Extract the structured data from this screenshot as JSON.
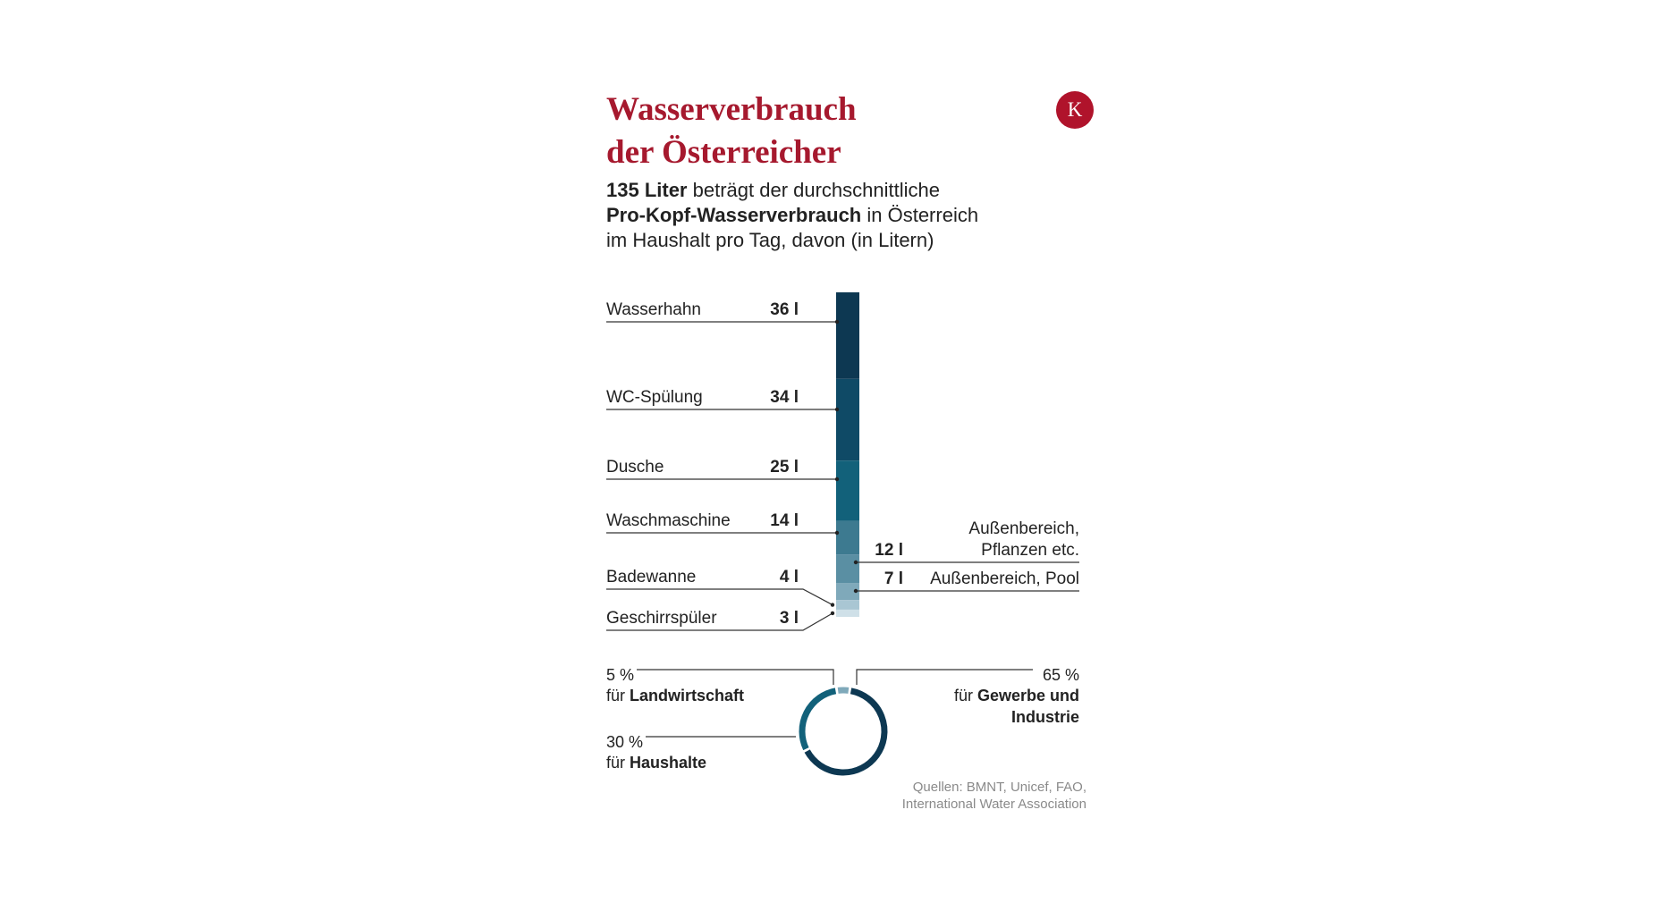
{
  "header": {
    "title_line1": "Wasserverbrauch",
    "title_line2": "der Österreicher",
    "logo_letter": "K",
    "subtitle": {
      "line1_bold": "135 Liter",
      "line1_rest": " beträgt der durchschnittliche",
      "line2_bold": "Pro-Kopf-Wasserverbrauch",
      "line2_rest": " in Österreich",
      "line3": "im Haushalt pro Tag, davon (in Litern)"
    }
  },
  "chart_data": [
    {
      "type": "bar",
      "stacked": true,
      "total": 135,
      "unit": "l",
      "categories": [
        "Wasserhahn",
        "WC-Spülung",
        "Dusche",
        "Waschmaschine",
        "Außenbereich, Pflanzen etc.",
        "Außenbereich, Pool",
        "Badewanne",
        "Geschirrspüler"
      ],
      "values": [
        36,
        34,
        25,
        14,
        12,
        7,
        4,
        3
      ],
      "labels": [
        "36 l",
        "34 l",
        "25 l",
        "14 l",
        "12  l",
        "7  l",
        "4 l",
        "3 l"
      ],
      "label_side": [
        "left",
        "left",
        "left",
        "left",
        "right",
        "right",
        "left",
        "left"
      ],
      "right_label_lines": {
        "4": [
          "Außenbereich,",
          "Pflanzen etc."
        ],
        "5": [
          "Außenbereich, Pool"
        ]
      },
      "colors": [
        "#0d3852",
        "#0f4a66",
        "#12617a",
        "#3d7a90",
        "#5a8fa3",
        "#7fa9ba",
        "#a9c6d3",
        "#cfe0e8"
      ]
    },
    {
      "type": "pie",
      "donut": true,
      "slices": [
        {
          "label_value": "5 %",
          "label_prefix": "für ",
          "label_bold": "Landwirtschaft",
          "value": 5,
          "color": "#7fa9ba"
        },
        {
          "label_value": "65 %",
          "label_prefix": "für ",
          "label_bold": "Gewerbe und",
          "label_bold2": "Industrie",
          "value": 65,
          "color": "#0d3852"
        },
        {
          "label_value": "30 %",
          "label_prefix": "für ",
          "label_bold": "Haushalte",
          "value": 30,
          "color": "#12617a"
        }
      ]
    }
  ],
  "source": {
    "line1": "Quellen: BMNT, Unicef, FAO,",
    "line2": "International Water Association"
  }
}
